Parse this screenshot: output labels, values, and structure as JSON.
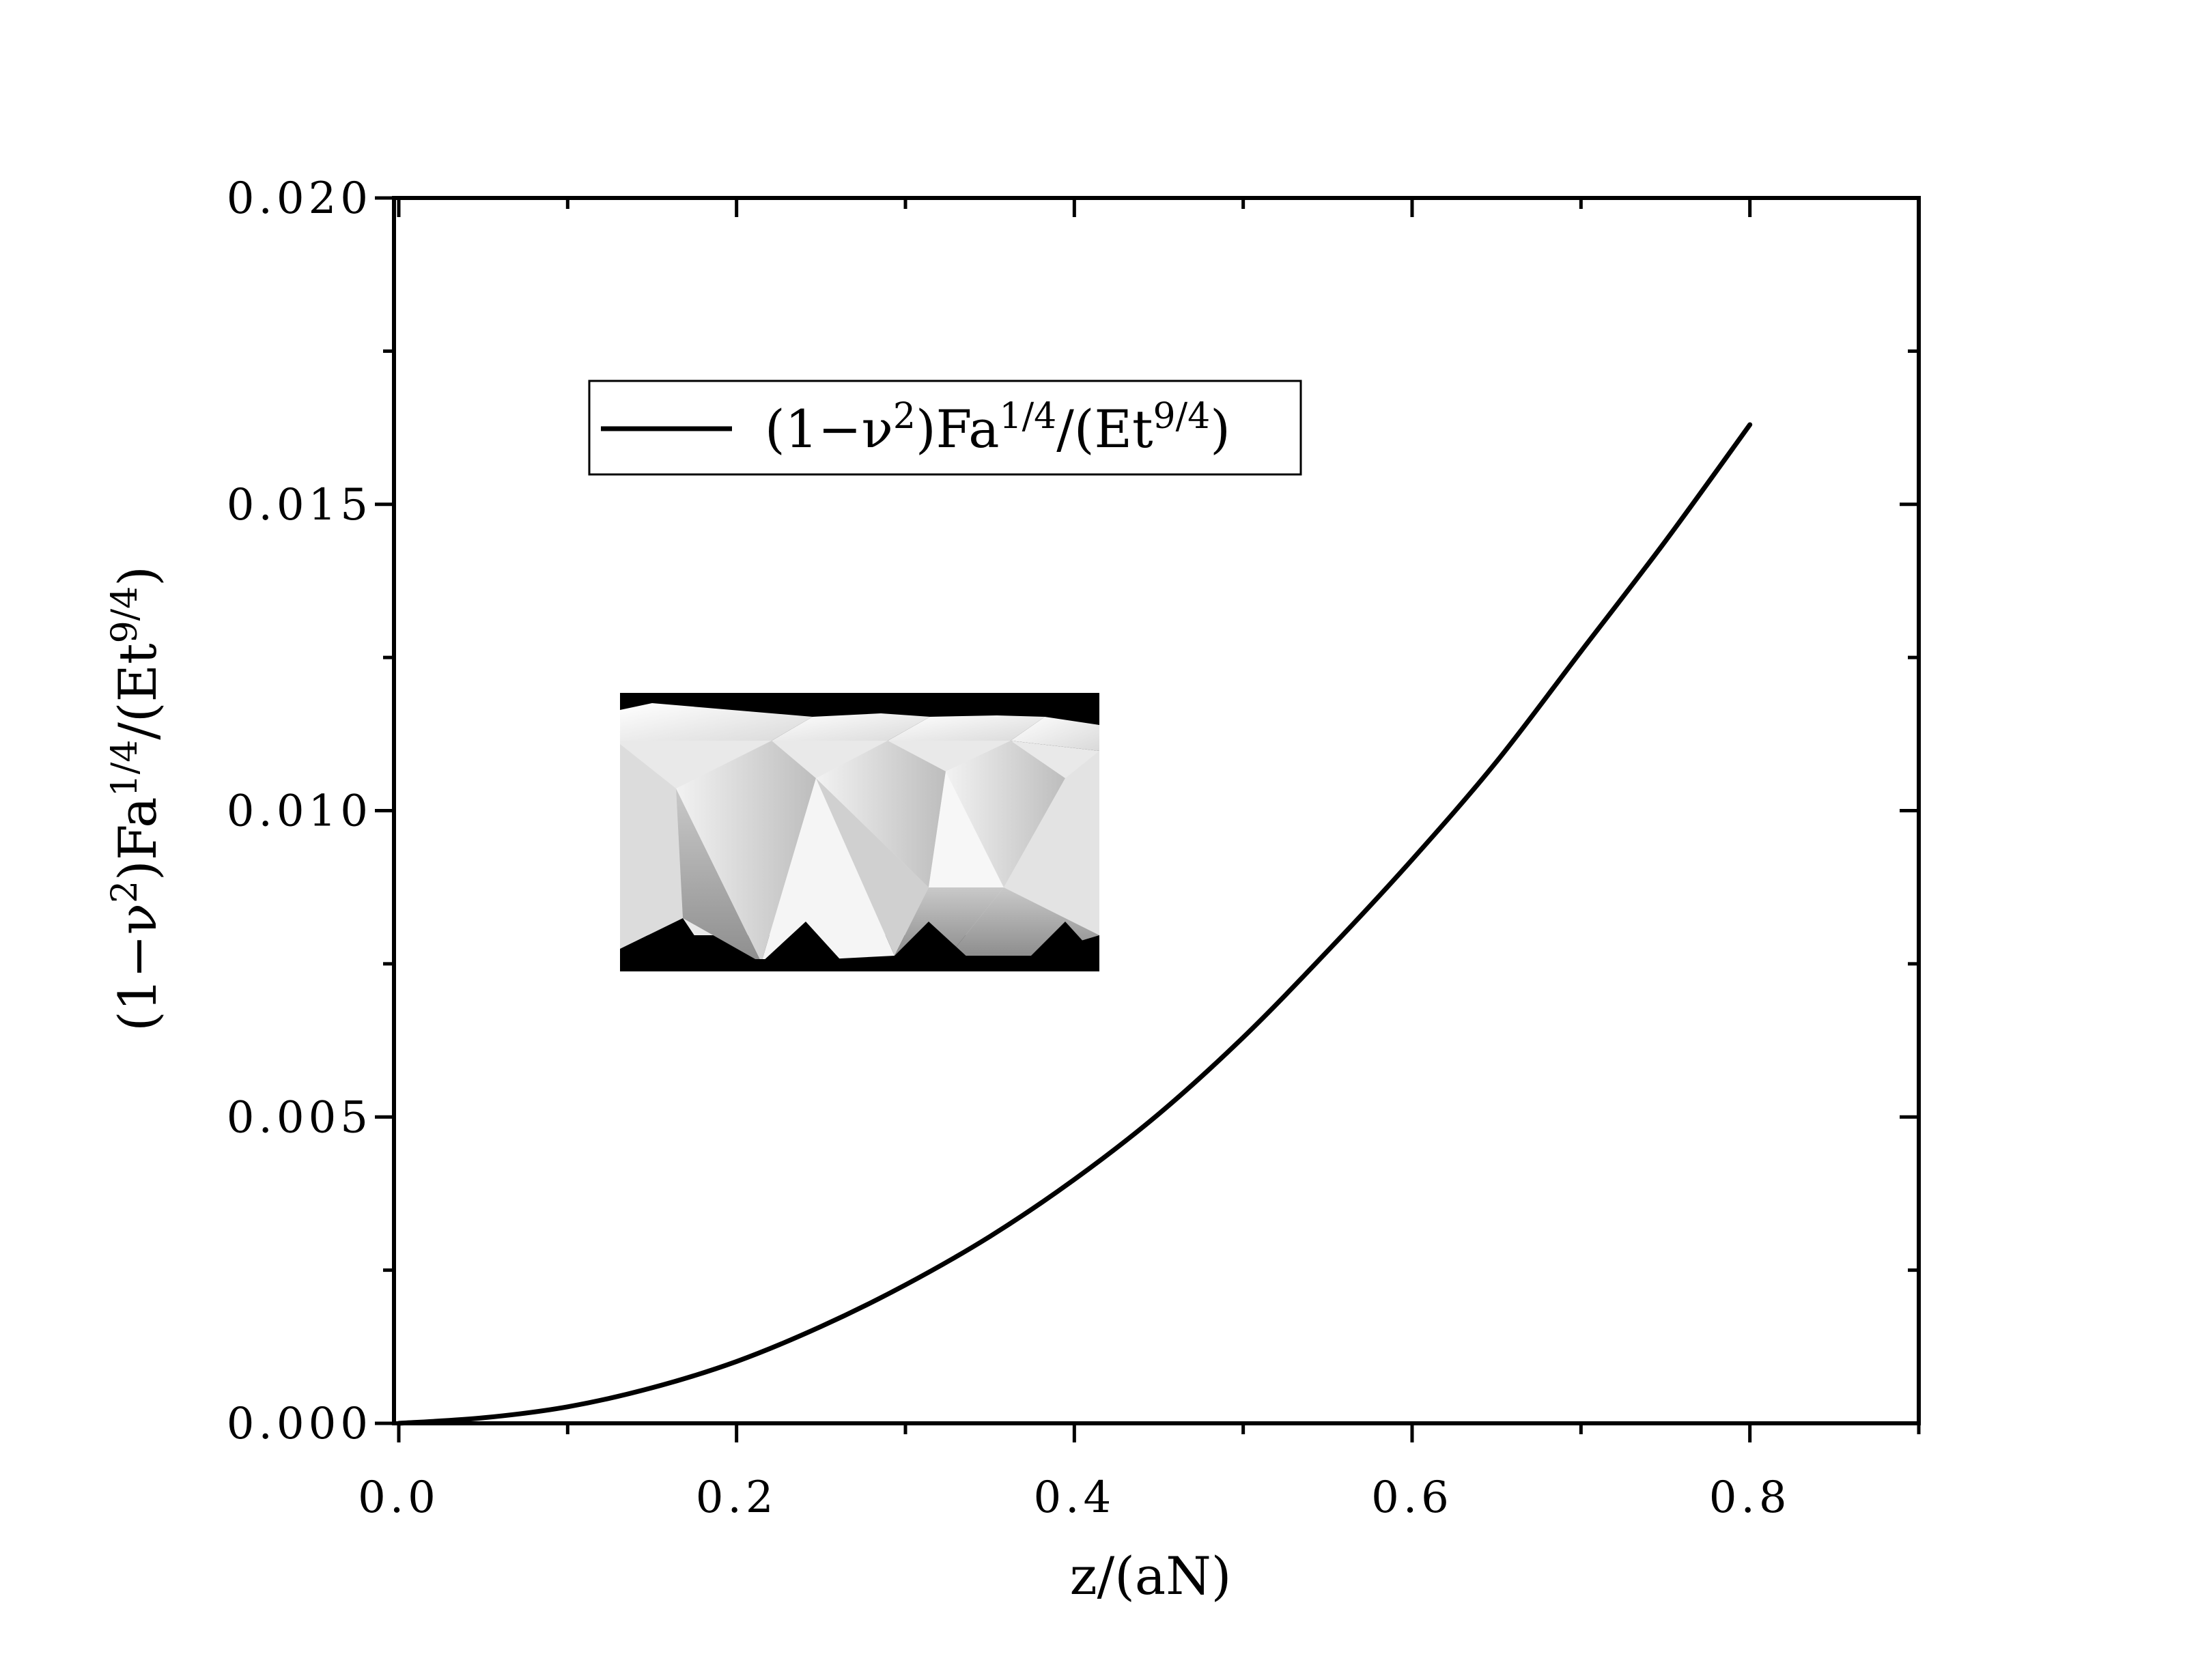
{
  "chart_data": {
    "type": "line",
    "x": [
      0.0,
      0.05,
      0.1,
      0.15,
      0.2,
      0.25,
      0.3,
      0.35,
      0.4,
      0.45,
      0.5,
      0.55,
      0.6,
      0.65,
      0.7,
      0.75,
      0.8
    ],
    "series": [
      {
        "name": "(1−ν²)Fa^{1/4}/(Et^{9/4})",
        "color": "#000000",
        "values": [
          0.0,
          9e-05,
          0.00027,
          0.00058,
          0.00101,
          0.00158,
          0.00226,
          0.00305,
          0.00398,
          0.00505,
          0.0063,
          0.00771,
          0.0092,
          0.0108,
          0.0126,
          0.0144,
          0.0163
        ]
      }
    ],
    "xlabel": "z/(aN)",
    "ylabel_main": "(1−ν",
    "ylabel_sup1": "2",
    "ylabel_mid": ")Fa",
    "ylabel_sup2": "1/4",
    "ylabel_mid2": "/(Et",
    "ylabel_sup3": "9/4",
    "ylabel_end": ")",
    "xlim": [
      0.0,
      0.9
    ],
    "ylim": [
      0.0,
      0.02
    ],
    "xticks": [
      0.0,
      0.2,
      0.4,
      0.6,
      0.8
    ],
    "xtick_labels": [
      "0.0",
      "0.2",
      "0.4",
      "0.6",
      "0.8"
    ],
    "yticks": [
      0.0,
      0.005,
      0.01,
      0.015,
      0.02
    ],
    "ytick_labels": [
      "0.000",
      "0.005",
      "0.010",
      "0.015",
      "0.020"
    ],
    "legend": {
      "placement": "top-left",
      "text_main": "(1−ν",
      "text_sup1": "2",
      "text_mid": ")Fa",
      "text_sup2": "1/4",
      "text_mid2": "/(Et",
      "text_sup3": "9/4",
      "text_end": ")"
    },
    "grid": false,
    "inset": "photo of a white folded origami tube (Kresling pattern) on black background"
  }
}
